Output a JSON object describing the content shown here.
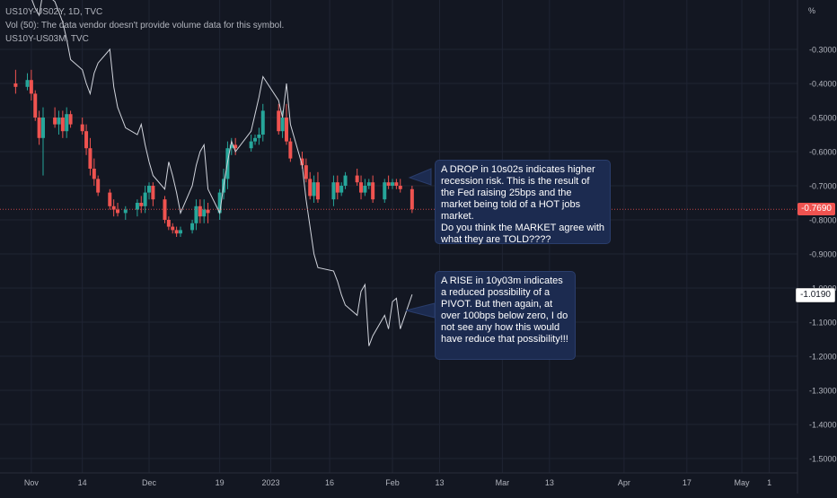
{
  "legend": {
    "line1": "US10Y-US02Y, 1D, TVC",
    "line2": "Vol (50): The data vendor doesn't provide volume data for this symbol.",
    "line3": "US10Y-US03M, TVC"
  },
  "colors": {
    "background": "#131722",
    "up": "#26a69a",
    "down": "#ef5350",
    "line": "#d1d4dc",
    "grid": "#1f2433",
    "axis_text": "#b2b5be",
    "note_bg": "#1c2b50"
  },
  "notes": [
    {
      "text": "A DROP in 10s02s indicates higher recession risk. This is the result of the Fed raising 25bps and the market being told of a HOT jobs market.\nDo you think the MARKET agree with what they are TOLD????"
    },
    {
      "text": "A RISE in 10y03m indicates a reduced possibility of a PIVOT. But then again, at over 100bps below zero, I do not see any how this would have reduce that possibility!!!"
    }
  ],
  "chart_data": {
    "type": "line",
    "title": "",
    "yunit": "%",
    "ylim": [
      -1.52,
      -0.23
    ],
    "yticks": [
      -0.3,
      -0.4,
      -0.5,
      -0.6,
      -0.7,
      -0.8,
      -0.9,
      -1.0,
      -1.1,
      -1.2,
      -1.3,
      -1.4,
      -1.5
    ],
    "ytick_labels": [
      "-0.3000",
      "-0.4000",
      "-0.5000",
      "-0.6000",
      "-0.7000",
      "-0.8000",
      "-0.9000",
      "-1.0000",
      "-1.1000",
      "-1.2000",
      "-1.3000",
      "-1.4000",
      "-1.5000"
    ],
    "xlim": [
      "2022-10-28",
      "2023-05-09"
    ],
    "xticks": [
      {
        "date": "2022-11-01",
        "label": "Nov"
      },
      {
        "date": "2022-11-14",
        "label": "14"
      },
      {
        "date": "2022-12-01",
        "label": "Dec"
      },
      {
        "date": "2022-12-19",
        "label": "19"
      },
      {
        "date": "2023-01-01",
        "label": "2023"
      },
      {
        "date": "2023-01-16",
        "label": "16"
      },
      {
        "date": "2023-02-01",
        "label": "Feb"
      },
      {
        "date": "2023-02-13",
        "label": "13"
      },
      {
        "date": "2023-03-01",
        "label": "Mar"
      },
      {
        "date": "2023-03-13",
        "label": "13"
      },
      {
        "date": "2023-04-01",
        "label": "Apr"
      },
      {
        "date": "2023-04-17",
        "label": "17"
      },
      {
        "date": "2023-05-01",
        "label": "May"
      },
      {
        "date": "2023-05-08",
        "label": "1"
      }
    ],
    "grid": true,
    "last_values": [
      {
        "series": "US10Y-US02Y",
        "value": -0.769,
        "label": "-0.7690"
      },
      {
        "series": "US10Y-US03M",
        "value": -1.019,
        "label": "-1.0190"
      }
    ],
    "series": [
      {
        "name": "US10Y-US02Y",
        "type": "candlestick",
        "values": [
          {
            "d": "2022-10-28",
            "o": -0.4,
            "h": -0.36,
            "l": -0.43,
            "c": -0.41
          },
          {
            "d": "2022-10-31",
            "o": -0.41,
            "h": -0.37,
            "l": -0.42,
            "c": -0.39
          },
          {
            "d": "2022-11-01",
            "o": -0.39,
            "h": -0.36,
            "l": -0.45,
            "c": -0.43
          },
          {
            "d": "2022-11-02",
            "o": -0.43,
            "h": -0.42,
            "l": -0.51,
            "c": -0.5
          },
          {
            "d": "2022-11-03",
            "o": -0.5,
            "h": -0.48,
            "l": -0.58,
            "c": -0.56
          },
          {
            "d": "2022-11-04",
            "o": -0.56,
            "h": -0.47,
            "l": -0.67,
            "c": -0.5
          },
          {
            "d": "2022-11-07",
            "o": -0.5,
            "h": -0.47,
            "l": -0.53,
            "c": -0.52
          },
          {
            "d": "2022-11-08",
            "o": -0.52,
            "h": -0.48,
            "l": -0.55,
            "c": -0.5
          },
          {
            "d": "2022-11-09",
            "o": -0.5,
            "h": -0.48,
            "l": -0.56,
            "c": -0.54
          },
          {
            "d": "2022-11-10",
            "o": -0.54,
            "h": -0.47,
            "l": -0.56,
            "c": -0.49
          },
          {
            "d": "2022-11-11",
            "o": -0.49,
            "h": -0.48,
            "l": -0.53,
            "c": -0.52
          },
          {
            "d": "2022-11-14",
            "o": -0.52,
            "h": -0.5,
            "l": -0.55,
            "c": -0.54
          },
          {
            "d": "2022-11-15",
            "o": -0.54,
            "h": -0.52,
            "l": -0.61,
            "c": -0.59
          },
          {
            "d": "2022-11-16",
            "o": -0.59,
            "h": -0.56,
            "l": -0.67,
            "c": -0.65
          },
          {
            "d": "2022-11-17",
            "o": -0.65,
            "h": -0.62,
            "l": -0.7,
            "c": -0.68
          },
          {
            "d": "2022-11-18",
            "o": -0.68,
            "h": -0.67,
            "l": -0.73,
            "c": -0.72
          },
          {
            "d": "2022-11-21",
            "o": -0.72,
            "h": -0.71,
            "l": -0.77,
            "c": -0.76
          },
          {
            "d": "2022-11-22",
            "o": -0.76,
            "h": -0.74,
            "l": -0.79,
            "c": -0.77
          },
          {
            "d": "2022-11-23",
            "o": -0.77,
            "h": -0.75,
            "l": -0.79,
            "c": -0.78
          },
          {
            "d": "2022-11-25",
            "o": -0.78,
            "h": -0.76,
            "l": -0.8,
            "c": -0.77
          },
          {
            "d": "2022-11-28",
            "o": -0.77,
            "h": -0.74,
            "l": -0.79,
            "c": -0.75
          },
          {
            "d": "2022-11-29",
            "o": -0.75,
            "h": -0.73,
            "l": -0.78,
            "c": -0.76
          },
          {
            "d": "2022-11-30",
            "o": -0.76,
            "h": -0.7,
            "l": -0.78,
            "c": -0.72
          },
          {
            "d": "2022-12-01",
            "o": -0.72,
            "h": -0.69,
            "l": -0.74,
            "c": -0.7
          },
          {
            "d": "2022-12-02",
            "o": -0.7,
            "h": -0.69,
            "l": -0.76,
            "c": -0.74
          },
          {
            "d": "2022-12-05",
            "o": -0.74,
            "h": -0.73,
            "l": -0.81,
            "c": -0.8
          },
          {
            "d": "2022-12-06",
            "o": -0.8,
            "h": -0.79,
            "l": -0.83,
            "c": -0.82
          },
          {
            "d": "2022-12-07",
            "o": -0.82,
            "h": -0.81,
            "l": -0.84,
            "c": -0.83
          },
          {
            "d": "2022-12-08",
            "o": -0.83,
            "h": -0.82,
            "l": -0.85,
            "c": -0.84
          },
          {
            "d": "2022-12-09",
            "o": -0.84,
            "h": -0.82,
            "l": -0.85,
            "c": -0.83
          },
          {
            "d": "2022-12-12",
            "o": -0.83,
            "h": -0.8,
            "l": -0.84,
            "c": -0.81
          },
          {
            "d": "2022-12-13",
            "o": -0.81,
            "h": -0.74,
            "l": -0.83,
            "c": -0.76
          },
          {
            "d": "2022-12-14",
            "o": -0.76,
            "h": -0.74,
            "l": -0.81,
            "c": -0.79
          },
          {
            "d": "2022-12-15",
            "o": -0.79,
            "h": -0.74,
            "l": -0.81,
            "c": -0.77
          },
          {
            "d": "2022-12-16",
            "o": -0.77,
            "h": -0.75,
            "l": -0.81,
            "c": -0.78
          },
          {
            "d": "2022-12-19",
            "o": -0.78,
            "h": -0.71,
            "l": -0.8,
            "c": -0.72
          },
          {
            "d": "2022-12-20",
            "o": -0.72,
            "h": -0.65,
            "l": -0.74,
            "c": -0.68
          },
          {
            "d": "2022-12-21",
            "o": -0.68,
            "h": -0.57,
            "l": -0.71,
            "c": -0.59
          },
          {
            "d": "2022-12-22",
            "o": -0.59,
            "h": -0.56,
            "l": -0.61,
            "c": -0.58
          },
          {
            "d": "2022-12-23",
            "o": -0.58,
            "h": -0.56,
            "l": -0.61,
            "c": -0.59
          },
          {
            "d": "2022-12-27",
            "o": -0.59,
            "h": -0.55,
            "l": -0.6,
            "c": -0.57
          },
          {
            "d": "2022-12-28",
            "o": -0.57,
            "h": -0.55,
            "l": -0.58,
            "c": -0.56
          },
          {
            "d": "2022-12-29",
            "o": -0.56,
            "h": -0.53,
            "l": -0.58,
            "c": -0.55
          },
          {
            "d": "2022-12-30",
            "o": -0.55,
            "h": -0.46,
            "l": -0.57,
            "c": -0.48
          },
          {
            "d": "2023-01-03",
            "o": -0.48,
            "h": -0.46,
            "l": -0.55,
            "c": -0.54
          },
          {
            "d": "2023-01-04",
            "o": -0.54,
            "h": -0.48,
            "l": -0.56,
            "c": -0.5
          },
          {
            "d": "2023-01-05",
            "o": -0.5,
            "h": -0.46,
            "l": -0.58,
            "c": -0.57
          },
          {
            "d": "2023-01-06",
            "o": -0.57,
            "h": -0.56,
            "l": -0.63,
            "c": -0.62
          },
          {
            "d": "2023-01-09",
            "o": -0.62,
            "h": -0.6,
            "l": -0.65,
            "c": -0.64
          },
          {
            "d": "2023-01-10",
            "o": -0.64,
            "h": -0.62,
            "l": -0.69,
            "c": -0.68
          },
          {
            "d": "2023-01-11",
            "o": -0.68,
            "h": -0.66,
            "l": -0.74,
            "c": -0.73
          },
          {
            "d": "2023-01-12",
            "o": -0.73,
            "h": -0.67,
            "l": -0.75,
            "c": -0.69
          },
          {
            "d": "2023-01-13",
            "o": -0.69,
            "h": -0.66,
            "l": -0.75,
            "c": -0.74
          },
          {
            "d": "2023-01-17",
            "o": -0.74,
            "h": -0.67,
            "l": -0.76,
            "c": -0.69
          },
          {
            "d": "2023-01-18",
            "o": -0.69,
            "h": -0.67,
            "l": -0.74,
            "c": -0.72
          },
          {
            "d": "2023-01-19",
            "o": -0.72,
            "h": -0.69,
            "l": -0.73,
            "c": -0.7
          },
          {
            "d": "2023-01-20",
            "o": -0.7,
            "h": -0.66,
            "l": -0.71,
            "c": -0.67
          },
          {
            "d": "2023-01-23",
            "o": -0.67,
            "h": -0.65,
            "l": -0.7,
            "c": -0.69
          },
          {
            "d": "2023-01-24",
            "o": -0.69,
            "h": -0.67,
            "l": -0.74,
            "c": -0.72
          },
          {
            "d": "2023-01-25",
            "o": -0.72,
            "h": -0.68,
            "l": -0.73,
            "c": -0.7
          },
          {
            "d": "2023-01-26",
            "o": -0.7,
            "h": -0.68,
            "l": -0.71,
            "c": -0.69
          },
          {
            "d": "2023-01-27",
            "o": -0.69,
            "h": -0.67,
            "l": -0.75,
            "c": -0.74
          },
          {
            "d": "2023-01-30",
            "o": -0.74,
            "h": -0.68,
            "l": -0.75,
            "c": -0.69
          },
          {
            "d": "2023-01-31",
            "o": -0.69,
            "h": -0.67,
            "l": -0.71,
            "c": -0.7
          },
          {
            "d": "2023-02-01",
            "o": -0.7,
            "h": -0.68,
            "l": -0.71,
            "c": -0.69
          },
          {
            "d": "2023-02-02",
            "o": -0.69,
            "h": -0.68,
            "l": -0.71,
            "c": -0.7
          },
          {
            "d": "2023-02-03",
            "o": -0.7,
            "h": -0.68,
            "l": -0.72,
            "c": -0.71
          },
          {
            "d": "2023-02-06",
            "o": -0.71,
            "h": -0.7,
            "l": -0.78,
            "c": -0.769
          }
        ]
      },
      {
        "name": "US10Y-US03M",
        "type": "line",
        "values": [
          {
            "d": "2022-10-28",
            "v": -0.14
          },
          {
            "d": "2022-10-31",
            "v": -0.12
          },
          {
            "d": "2022-11-01",
            "v": -0.15
          },
          {
            "d": "2022-11-02",
            "v": -0.18
          },
          {
            "d": "2022-11-03",
            "v": -0.2
          },
          {
            "d": "2022-11-04",
            "v": -0.13
          },
          {
            "d": "2022-11-07",
            "v": -0.16
          },
          {
            "d": "2022-11-08",
            "v": -0.19
          },
          {
            "d": "2022-11-09",
            "v": -0.22
          },
          {
            "d": "2022-11-10",
            "v": -0.27
          },
          {
            "d": "2022-11-11",
            "v": -0.33
          },
          {
            "d": "2022-11-14",
            "v": -0.36
          },
          {
            "d": "2022-11-15",
            "v": -0.4
          },
          {
            "d": "2022-11-16",
            "v": -0.43
          },
          {
            "d": "2022-11-17",
            "v": -0.37
          },
          {
            "d": "2022-11-18",
            "v": -0.34
          },
          {
            "d": "2022-11-21",
            "v": -0.3
          },
          {
            "d": "2022-11-22",
            "v": -0.41
          },
          {
            "d": "2022-11-23",
            "v": -0.47
          },
          {
            "d": "2022-11-25",
            "v": -0.53
          },
          {
            "d": "2022-11-28",
            "v": -0.55
          },
          {
            "d": "2022-11-29",
            "v": -0.52
          },
          {
            "d": "2022-11-30",
            "v": -0.58
          },
          {
            "d": "2022-12-01",
            "v": -0.63
          },
          {
            "d": "2022-12-02",
            "v": -0.67
          },
          {
            "d": "2022-12-05",
            "v": -0.71
          },
          {
            "d": "2022-12-06",
            "v": -0.63
          },
          {
            "d": "2022-12-07",
            "v": -0.67
          },
          {
            "d": "2022-12-08",
            "v": -0.72
          },
          {
            "d": "2022-12-09",
            "v": -0.78
          },
          {
            "d": "2022-12-12",
            "v": -0.7
          },
          {
            "d": "2022-12-13",
            "v": -0.64
          },
          {
            "d": "2022-12-14",
            "v": -0.6
          },
          {
            "d": "2022-12-15",
            "v": -0.58
          },
          {
            "d": "2022-12-16",
            "v": -0.71
          },
          {
            "d": "2022-12-19",
            "v": -0.78
          },
          {
            "d": "2022-12-20",
            "v": -0.7
          },
          {
            "d": "2022-12-21",
            "v": -0.63
          },
          {
            "d": "2022-12-22",
            "v": -0.57
          },
          {
            "d": "2022-12-23",
            "v": -0.6
          },
          {
            "d": "2022-12-27",
            "v": -0.54
          },
          {
            "d": "2022-12-28",
            "v": -0.49
          },
          {
            "d": "2022-12-29",
            "v": -0.44
          },
          {
            "d": "2022-12-30",
            "v": -0.38
          },
          {
            "d": "2023-01-03",
            "v": -0.45
          },
          {
            "d": "2023-01-04",
            "v": -0.5
          },
          {
            "d": "2023-01-05",
            "v": -0.4
          },
          {
            "d": "2023-01-06",
            "v": -0.52
          },
          {
            "d": "2023-01-09",
            "v": -0.64
          },
          {
            "d": "2023-01-10",
            "v": -0.74
          },
          {
            "d": "2023-01-11",
            "v": -0.82
          },
          {
            "d": "2023-01-12",
            "v": -0.9
          },
          {
            "d": "2023-01-13",
            "v": -0.94
          },
          {
            "d": "2023-01-17",
            "v": -0.95
          },
          {
            "d": "2023-01-18",
            "v": -0.98
          },
          {
            "d": "2023-01-19",
            "v": -1.02
          },
          {
            "d": "2023-01-20",
            "v": -1.05
          },
          {
            "d": "2023-01-23",
            "v": -1.08
          },
          {
            "d": "2023-01-24",
            "v": -1.01
          },
          {
            "d": "2023-01-25",
            "v": -0.99
          },
          {
            "d": "2023-01-26",
            "v": -1.17
          },
          {
            "d": "2023-01-27",
            "v": -1.14
          },
          {
            "d": "2023-01-30",
            "v": -1.08
          },
          {
            "d": "2023-01-31",
            "v": -1.12
          },
          {
            "d": "2023-02-01",
            "v": -1.04
          },
          {
            "d": "2023-02-02",
            "v": -1.03
          },
          {
            "d": "2023-02-03",
            "v": -1.12
          },
          {
            "d": "2023-02-06",
            "v": -1.019
          }
        ]
      }
    ]
  }
}
